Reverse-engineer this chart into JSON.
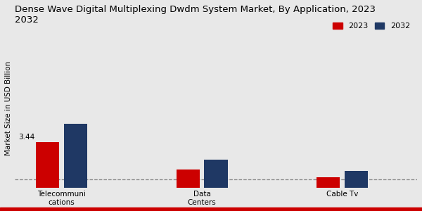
{
  "title": "Dense Wave Digital Multiplexing Dwdm System Market, By Application, 2023\n2032",
  "ylabel": "Market Size in USD Billion",
  "categories": [
    "Telecommuni\ncations",
    "Data\nCenters",
    "Cable Tv"
  ],
  "series": {
    "2023": [
      3.44,
      1.35,
      0.75
    ],
    "2032": [
      4.8,
      2.1,
      1.25
    ]
  },
  "colors": {
    "2023": "#cc0000",
    "2032": "#1f3864"
  },
  "bar_width": 0.25,
  "background_color": "#e8e8e8",
  "ylim": [
    0,
    12
  ],
  "dashed_line_y": 0.6,
  "title_fontsize": 9.5,
  "axis_label_fontsize": 7.5,
  "tick_fontsize": 7.5,
  "legend_fontsize": 8,
  "red_bottom_bar_color": "#cc0000",
  "red_bottom_bar_height": 0.018
}
